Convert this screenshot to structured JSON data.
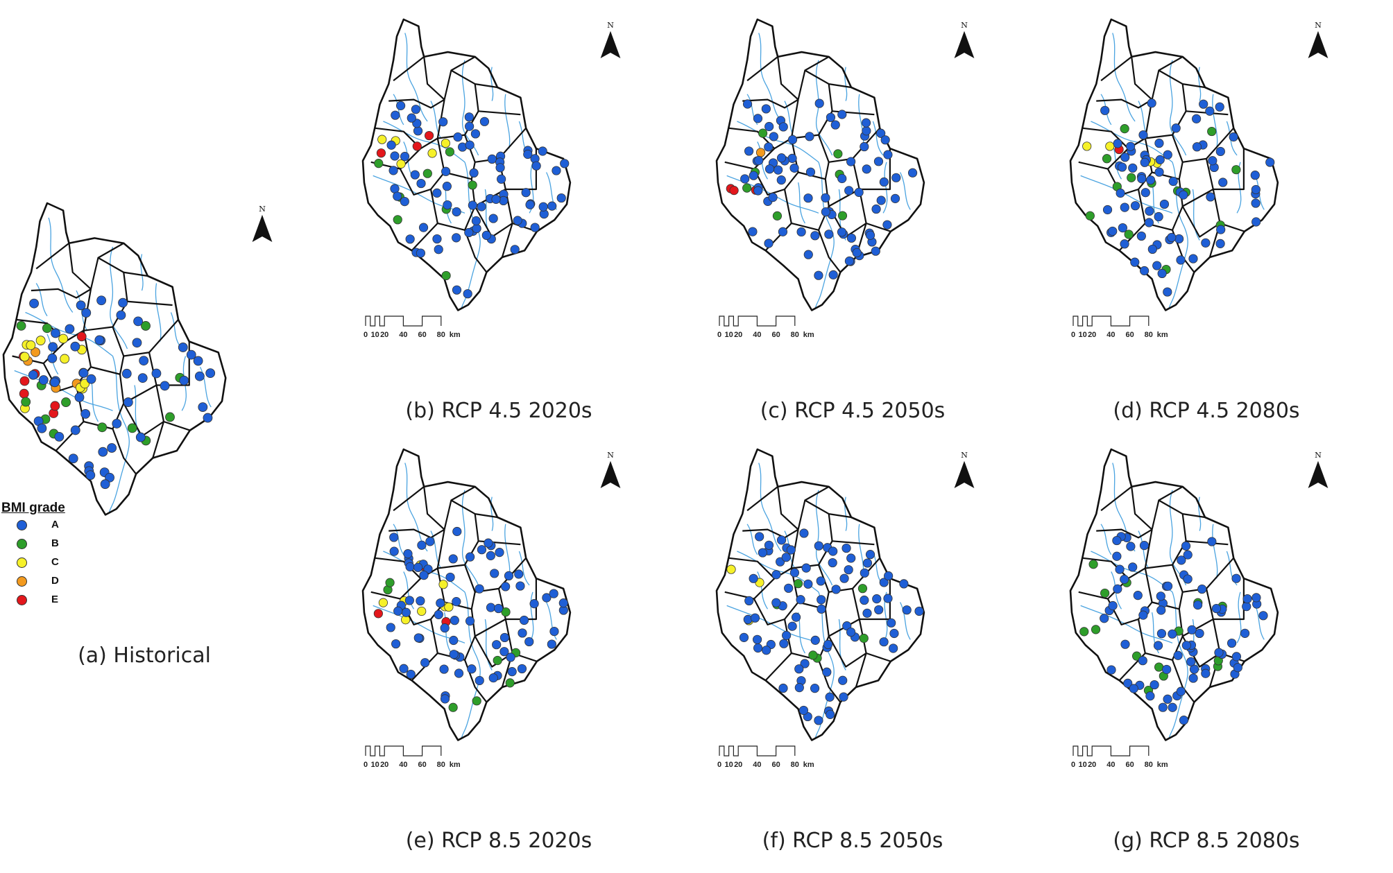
{
  "colors": {
    "A": "#1f5fd6",
    "B": "#2e9e2a",
    "C": "#f6f12a",
    "D": "#f39a1e",
    "E": "#e3171c",
    "river": "#4aa3e0",
    "boundary": "#111111"
  },
  "legend": {
    "title": "BMI grade",
    "grades": [
      {
        "grade": "A",
        "label": "A"
      },
      {
        "grade": "B",
        "label": "B"
      },
      {
        "grade": "C",
        "label": "C"
      },
      {
        "grade": "D",
        "label": "D"
      },
      {
        "grade": "E",
        "label": "E"
      }
    ]
  },
  "north_label": "N",
  "scale_bar": {
    "labels": [
      "0",
      "10",
      "20",
      "40",
      "60",
      "80"
    ],
    "unit": "km"
  },
  "panels": [
    {
      "id": "a",
      "caption": "(a) Historical",
      "grade_counts": {
        "A": 52,
        "B": 14,
        "C": 11,
        "D": 5,
        "E": 7
      }
    },
    {
      "id": "b",
      "caption": "(b) RCP 4.5 2020s",
      "grade_counts": {
        "A": 74,
        "B": 8,
        "C": 5,
        "D": 0,
        "E": 3
      }
    },
    {
      "id": "c",
      "caption": "(c) RCP 4.5 2050s",
      "grade_counts": {
        "A": 78,
        "B": 7,
        "C": 0,
        "D": 1,
        "E": 3
      }
    },
    {
      "id": "d",
      "caption": "(d) RCP 4.5 2080s",
      "grade_counts": {
        "A": 71,
        "B": 13,
        "C": 4,
        "D": 0,
        "E": 1
      }
    },
    {
      "id": "e",
      "caption": "(e) RCP 8.5 2020s",
      "grade_counts": {
        "A": 75,
        "B": 8,
        "C": 8,
        "D": 0,
        "E": 3
      }
    },
    {
      "id": "f",
      "caption": "(f) RCP 8.5 2050s",
      "grade_counts": {
        "A": 81,
        "B": 6,
        "C": 3,
        "D": 0,
        "E": 0
      }
    },
    {
      "id": "g",
      "caption": "(g) RCP 8.5 2080s",
      "grade_counts": {
        "A": 76,
        "B": 14,
        "C": 0,
        "D": 0,
        "E": 0
      }
    }
  ]
}
